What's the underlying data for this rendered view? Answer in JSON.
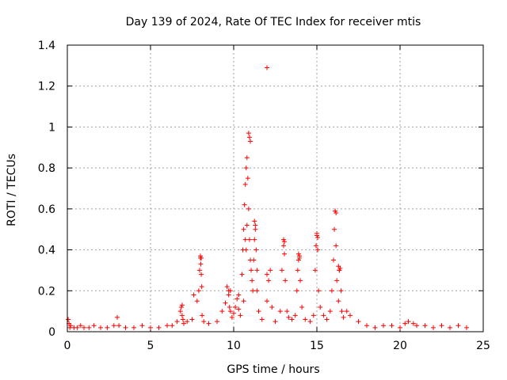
{
  "chart_data": {
    "type": "scatter",
    "title": "Day 139 of 2024, Rate Of TEC Index for receiver mtis",
    "xlabel": "GPS time / hours",
    "ylabel": "ROTI / TECUs",
    "xlim": [
      0,
      25
    ],
    "ylim": [
      0,
      1.4
    ],
    "xticks": [
      "0",
      "5",
      "10",
      "15",
      "20",
      "25"
    ],
    "yticks": [
      "0",
      "0.2",
      "0.4",
      "0.6",
      "0.8",
      "1",
      "1.2",
      "1.4"
    ],
    "grid": true,
    "marker": "plus",
    "color": "#ff0000",
    "series": [
      {
        "x": [
          0.05,
          0.2,
          0.4,
          0.6,
          0.8,
          1.0,
          1.3,
          1.6,
          2.0,
          2.4,
          2.8,
          3.0,
          3.1,
          3.5,
          4.0,
          4.5,
          5.0,
          5.5,
          6.0,
          6.3,
          6.6,
          6.8,
          6.85,
          6.9,
          6.95,
          7.0,
          7.2,
          7.5,
          7.8,
          7.9,
          7.95,
          8.0,
          8.02,
          8.05,
          8.08,
          8.1,
          8.2,
          8.5,
          9.0,
          9.3,
          9.5,
          9.6,
          9.7,
          9.75,
          9.8,
          9.9,
          10.0,
          10.1,
          10.2,
          10.3,
          10.4,
          10.5,
          10.55,
          10.6,
          10.65,
          10.7,
          10.75,
          10.8,
          10.85,
          10.9,
          10.95,
          11.0,
          11.05,
          11.1,
          11.15,
          11.2,
          11.25,
          11.3,
          11.35,
          11.4,
          11.5,
          11.7,
          12.0,
          12.1,
          12.2,
          12.3,
          12.5,
          12.8,
          12.9,
          13.0,
          13.05,
          13.1,
          13.2,
          13.3,
          13.5,
          13.7,
          13.8,
          13.85,
          13.9,
          13.95,
          14.0,
          14.1,
          14.3,
          14.6,
          14.8,
          14.9,
          14.95,
          15.0,
          15.05,
          15.1,
          15.2,
          15.4,
          15.6,
          15.8,
          15.9,
          16.0,
          16.05,
          16.1,
          16.15,
          16.2,
          16.3,
          16.35,
          16.4,
          16.45,
          16.5,
          16.6,
          16.8,
          17.0,
          17.5,
          18.0,
          18.5,
          19.0,
          19.5,
          20.0,
          20.3,
          20.5,
          20.8,
          21.0,
          21.5,
          22.0,
          22.5,
          23.0,
          23.5,
          24.0,
          0.1,
          0.15,
          12.0,
          10.9,
          10.95,
          11.0,
          10.7,
          10.75,
          10.8,
          11.25,
          11.3,
          16.1,
          16.15,
          16.3,
          16.35,
          15.0,
          15.05,
          13.0,
          13.05,
          13.9,
          13.95,
          8.0,
          8.05,
          9.7,
          9.8,
          10.3,
          6.9,
          7.6,
          10.6,
          11.4,
          12.0
        ],
        "y": [
          0.06,
          0.03,
          0.02,
          0.02,
          0.03,
          0.02,
          0.02,
          0.03,
          0.02,
          0.02,
          0.03,
          0.07,
          0.03,
          0.02,
          0.02,
          0.03,
          0.02,
          0.02,
          0.03,
          0.03,
          0.05,
          0.1,
          0.12,
          0.08,
          0.06,
          0.04,
          0.05,
          0.06,
          0.15,
          0.2,
          0.3,
          0.36,
          0.33,
          0.28,
          0.22,
          0.08,
          0.05,
          0.04,
          0.05,
          0.1,
          0.14,
          0.22,
          0.18,
          0.12,
          0.1,
          0.07,
          0.09,
          0.12,
          0.16,
          0.11,
          0.08,
          0.28,
          0.4,
          0.5,
          0.62,
          0.72,
          0.8,
          0.85,
          0.75,
          0.6,
          0.45,
          0.35,
          0.3,
          0.25,
          0.2,
          0.35,
          0.45,
          0.5,
          0.4,
          0.2,
          0.1,
          0.06,
          0.15,
          0.25,
          0.3,
          0.12,
          0.05,
          0.1,
          0.3,
          0.42,
          0.38,
          0.25,
          0.1,
          0.07,
          0.06,
          0.08,
          0.2,
          0.3,
          0.35,
          0.36,
          0.25,
          0.12,
          0.06,
          0.05,
          0.08,
          0.3,
          0.42,
          0.47,
          0.4,
          0.2,
          0.12,
          0.08,
          0.06,
          0.1,
          0.2,
          0.35,
          0.5,
          0.59,
          0.42,
          0.25,
          0.15,
          0.3,
          0.31,
          0.2,
          0.1,
          0.07,
          0.1,
          0.08,
          0.05,
          0.03,
          0.02,
          0.03,
          0.03,
          0.02,
          0.04,
          0.05,
          0.04,
          0.03,
          0.03,
          0.02,
          0.03,
          0.02,
          0.03,
          0.02,
          0.04,
          0.02,
          1.29,
          0.97,
          0.95,
          0.93,
          0.45,
          0.4,
          0.52,
          0.54,
          0.52,
          0.59,
          0.58,
          0.32,
          0.3,
          0.48,
          0.46,
          0.45,
          0.44,
          0.38,
          0.37,
          0.37,
          0.36,
          0.2,
          0.2,
          0.18,
          0.13,
          0.18,
          0.15,
          0.3,
          0.28
        ]
      }
    ]
  }
}
